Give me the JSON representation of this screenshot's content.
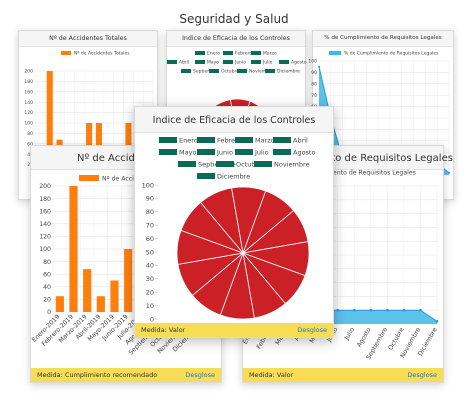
{
  "page": {
    "title": "Seguridad y Salud"
  },
  "colors": {
    "orange": "#ff7f0e",
    "red": "#cc2027",
    "teal": "#0c6b57",
    "blue": "#41b6e6",
    "footer_bg": "#f7dd55"
  },
  "panels": {
    "accidents": {
      "title": "Nº de Accidentes Totales",
      "legend": "Nº de Accidentes Totales",
      "footer_label": "Medida: Cumplimiento recomendado",
      "footer_link": "Desglose"
    },
    "controls": {
      "title": "Indice de Eficacia de los Controles",
      "footer_label": "Medida: Valor",
      "footer_link": "Desglose"
    },
    "compliance": {
      "title": "% de Cumplimiento de Requisitos Legales",
      "legend": "% de Cumplimiento de Requisitos Legales",
      "footer_label": "Medida: Valor",
      "footer_link": "Desglose"
    }
  },
  "chart_data": [
    {
      "type": "bar",
      "title": "Nº de Accidentes Totales",
      "categories": [
        "Enero-2019",
        "Febrero-2019",
        "Marzo-2019",
        "Abril-2019",
        "Mayo-2019",
        "Junio-2019",
        "Julio-2019",
        "Agosto-2019",
        "Septiembre-2019",
        "Octubre-2019",
        "Noviembre-2019",
        "Diciembre-2019"
      ],
      "series": [
        {
          "name": "Nº de Accidentes Totales",
          "values": [
            25,
            200,
            68,
            25,
            50,
            100,
            100,
            30,
            40,
            100,
            25,
            0
          ]
        }
      ],
      "ylim": [
        0,
        200
      ],
      "yticks": [
        0,
        20,
        40,
        60,
        80,
        100,
        120,
        140,
        160,
        180,
        200
      ]
    },
    {
      "type": "pie",
      "title": "Indice de Eficacia de los Controles",
      "categories": [
        "Enero",
        "Febrero",
        "Marzo",
        "Abril",
        "Mayo",
        "Junio",
        "Julio",
        "Agosto",
        "Septiembre",
        "Octubre",
        "Noviembre",
        "Diciembre"
      ],
      "values": [
        100,
        100,
        100,
        100,
        100,
        100,
        100,
        100,
        100,
        100,
        100,
        100
      ],
      "ylim": [
        0,
        100
      ],
      "yticks": [
        0,
        10,
        20,
        30,
        40,
        50,
        60,
        70,
        80,
        90,
        100
      ]
    },
    {
      "type": "area",
      "title": "% de Cumplimiento de Requisitos Legales",
      "categories": [
        "Enero",
        "Febrero",
        "Marzo",
        "Abril",
        "Mayo",
        "Junio",
        "Julio",
        "Agosto",
        "Septiembre",
        "Octubre",
        "Noviembre",
        "Diciembre"
      ],
      "series": [
        {
          "name": "% de Cumplimiento de Requisitos Legales",
          "values": [
            95,
            50,
            15,
            10,
            10,
            10,
            10,
            10,
            10,
            10,
            10,
            2
          ]
        }
      ],
      "ylim": [
        0,
        100
      ],
      "yticks": [
        0,
        10,
        20,
        30,
        40,
        50,
        60,
        70,
        80,
        90,
        100
      ]
    }
  ]
}
